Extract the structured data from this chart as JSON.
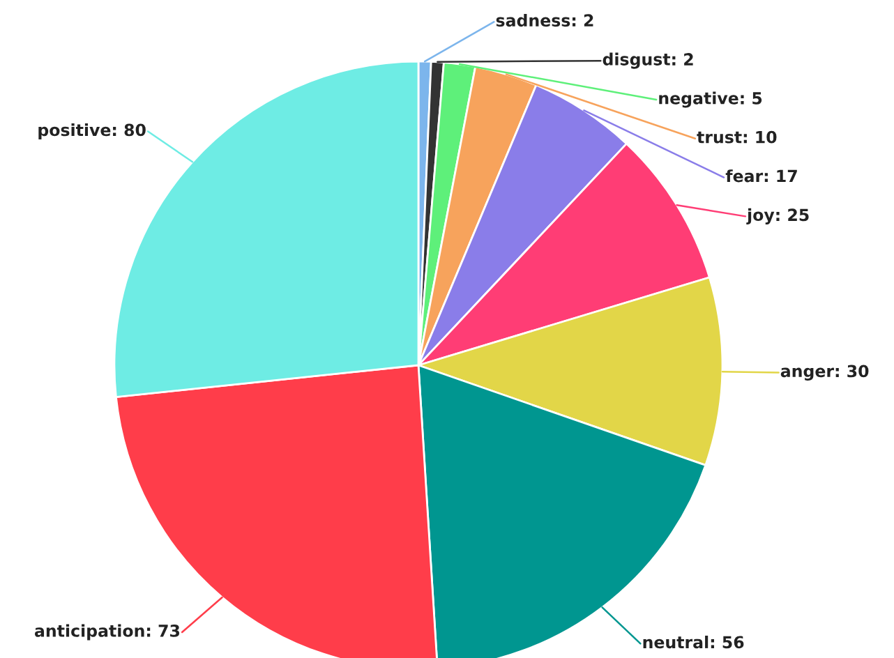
{
  "chart_data": {
    "type": "pie",
    "categories": [
      "sadness",
      "disgust",
      "negative",
      "trust",
      "fear",
      "joy",
      "anger",
      "neutral",
      "anticipation",
      "positive"
    ],
    "values": [
      2,
      2,
      5,
      10,
      17,
      25,
      30,
      56,
      73,
      80
    ],
    "colors": [
      "#7cb5ec",
      "#333333",
      "#5ef07a",
      "#f7a35c",
      "#8a7de9",
      "#ff3d75",
      "#e2d648",
      "#009690",
      "#ff3d4a",
      "#6eece4"
    ],
    "value_labels": [
      ": 2",
      ": 2",
      ": 5",
      ": 10",
      ": 17",
      ": 25",
      ": 30",
      ": 56",
      ": 73",
      ": 80"
    ]
  }
}
